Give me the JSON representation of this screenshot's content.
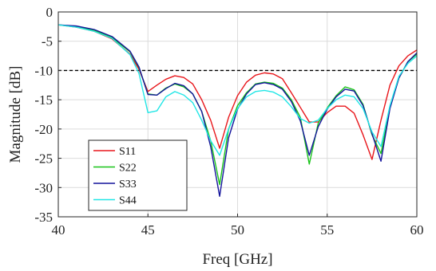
{
  "chart_data": {
    "type": "line",
    "xlabel": "Freq [GHz]",
    "ylabel": "Magnitude [dB]",
    "xlim": [
      40,
      60
    ],
    "ylim": [
      -35,
      0
    ],
    "xticks": [
      40,
      45,
      50,
      55,
      60
    ],
    "yticks": [
      0,
      -5,
      -10,
      -15,
      -20,
      -25,
      -30,
      -35
    ],
    "grid": true,
    "legend": "lower-left",
    "reference_line": {
      "y": -10,
      "style": "dashed",
      "color": "#000000"
    },
    "series": [
      {
        "name": "S11",
        "color": "#e8161b",
        "x": [
          40,
          41,
          42,
          43,
          44,
          44.5,
          45,
          45.5,
          46,
          46.5,
          47,
          47.5,
          48,
          48.5,
          49,
          49.5,
          50,
          50.5,
          51,
          51.5,
          52,
          52.5,
          53,
          53.5,
          54,
          54.5,
          55,
          55.5,
          56,
          56.5,
          57,
          57.5,
          58,
          58.5,
          59,
          59.5,
          60
        ],
        "y": [
          -2.2,
          -2.6,
          -3.3,
          -4.6,
          -7.2,
          -9.8,
          -13.6,
          -12.5,
          -11.5,
          -10.9,
          -11.2,
          -12.3,
          -15,
          -18.5,
          -23.3,
          -18,
          -14.3,
          -12,
          -10.8,
          -10.4,
          -10.6,
          -11.4,
          -13.8,
          -16.3,
          -18.8,
          -18.8,
          -17.2,
          -16.1,
          -16.1,
          -17.3,
          -21,
          -25.2,
          -18.5,
          -12.5,
          -9.2,
          -7.5,
          -6.5
        ]
      },
      {
        "name": "S22",
        "color": "#19c419",
        "x": [
          40,
          41,
          42,
          43,
          44,
          44.5,
          45,
          45.5,
          46,
          46.5,
          47,
          47.5,
          48,
          48.5,
          49,
          49.5,
          50,
          50.5,
          51,
          51.5,
          52,
          52.5,
          53,
          53.5,
          54,
          54.5,
          55,
          55.5,
          56,
          56.5,
          57,
          57.5,
          58,
          58.5,
          59,
          59.5,
          60
        ],
        "y": [
          -2.2,
          -2.5,
          -3.1,
          -4.4,
          -6.8,
          -9.5,
          -14,
          -14.2,
          -13,
          -12.3,
          -12.8,
          -14,
          -17,
          -22,
          -29.5,
          -20,
          -16,
          -13.8,
          -12.3,
          -12,
          -12.2,
          -13,
          -15,
          -18,
          -26,
          -19,
          -16.4,
          -14.3,
          -12.8,
          -13.3,
          -15.8,
          -21,
          -24.2,
          -16.3,
          -11.3,
          -8.5,
          -7.2
        ]
      },
      {
        "name": "S33",
        "color": "#14149c",
        "x": [
          40,
          41,
          42,
          43,
          44,
          44.5,
          45,
          45.5,
          46,
          46.5,
          47,
          47.5,
          48,
          48.5,
          49,
          49.5,
          50,
          50.5,
          51,
          51.5,
          52,
          52.5,
          53,
          53.5,
          54,
          54.5,
          55,
          55.5,
          56,
          56.5,
          57,
          57.5,
          58,
          58.5,
          59,
          59.5,
          60
        ],
        "y": [
          -2.2,
          -2.4,
          -3.0,
          -4.2,
          -6.7,
          -9.4,
          -14.1,
          -14.2,
          -13.1,
          -12.2,
          -12.6,
          -14,
          -17,
          -23,
          -31.5,
          -21.5,
          -16.6,
          -14,
          -12.4,
          -12.1,
          -12.4,
          -13.2,
          -15.3,
          -18.6,
          -24.5,
          -19.6,
          -16.6,
          -14.5,
          -13.2,
          -13.5,
          -16,
          -20.8,
          -25.5,
          -16.5,
          -11.3,
          -8.5,
          -7.0
        ]
      },
      {
        "name": "S44",
        "color": "#21e6e6",
        "x": [
          40,
          41,
          42,
          43,
          44,
          44.5,
          45,
          45.5,
          46,
          46.5,
          47,
          47.5,
          48,
          48.5,
          49,
          49.5,
          50,
          50.5,
          51,
          51.5,
          52,
          52.5,
          53,
          53.5,
          54,
          54.5,
          55,
          55.5,
          56,
          56.5,
          57,
          57.5,
          58,
          58.5,
          59,
          59.5,
          60
        ],
        "y": [
          -2.2,
          -2.6,
          -3.3,
          -4.5,
          -7.3,
          -10.5,
          -17.2,
          -16.9,
          -14.5,
          -13.6,
          -14.2,
          -15.5,
          -18.5,
          -22,
          -24.5,
          -20,
          -16.5,
          -14.5,
          -13.6,
          -13.4,
          -13.7,
          -14.5,
          -16.2,
          -18.2,
          -19,
          -18.5,
          -16.5,
          -15,
          -14.2,
          -14.5,
          -16.5,
          -20.5,
          -23,
          -16,
          -11,
          -8.8,
          -7.5
        ]
      }
    ]
  }
}
